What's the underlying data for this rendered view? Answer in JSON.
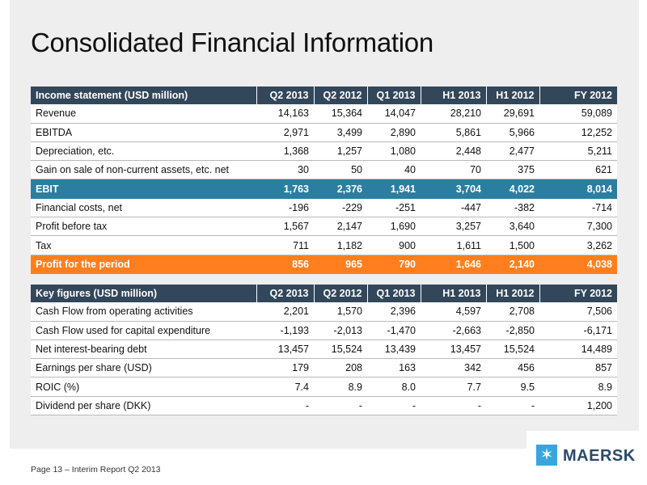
{
  "title": "Consolidated Financial Information",
  "income": {
    "header": [
      "Income statement (USD million)",
      "Q2 2013",
      "Q2 2012",
      "Q1 2013",
      "H1 2013",
      "H1 2012",
      "FY 2012"
    ],
    "rows": [
      [
        "Revenue",
        "14,163",
        "15,364",
        "14,047",
        "28,210",
        "29,691",
        "59,089"
      ],
      [
        "EBITDA",
        "2,971",
        "3,499",
        "2,890",
        "5,861",
        "5,966",
        "12,252"
      ],
      [
        "Depreciation, etc.",
        "1,368",
        "1,257",
        "1,080",
        "2,448",
        "2,477",
        "5,211"
      ],
      [
        "Gain on sale of non-current assets, etc. net",
        "30",
        "50",
        "40",
        "70",
        "375",
        "621"
      ],
      [
        "EBIT",
        "1,763",
        "2,376",
        "1,941",
        "3,704",
        "4,022",
        "8,014"
      ],
      [
        "Financial costs, net",
        "-196",
        "-229",
        "-251",
        "-447",
        "-382",
        "-714"
      ],
      [
        "Profit before tax",
        "1,567",
        "2,147",
        "1,690",
        "3,257",
        "3,640",
        "7,300"
      ],
      [
        "Tax",
        "711",
        "1,182",
        "900",
        "1,611",
        "1,500",
        "3,262"
      ],
      [
        "Profit for the period",
        "856",
        "965",
        "790",
        "1,646",
        "2,140",
        "4,038"
      ]
    ]
  },
  "keyfigures": {
    "header": [
      "Key figures (USD million)",
      "Q2 2013",
      "Q2 2012",
      "Q1 2013",
      "H1 2013",
      "H1 2012",
      "FY 2012"
    ],
    "rows": [
      [
        "Cash Flow from operating activities",
        "2,201",
        "1,570",
        "2,396",
        "4,597",
        "2,708",
        "7,506"
      ],
      [
        "Cash Flow used for capital expenditure",
        "-1,193",
        "-2,013",
        "-1,470",
        "-2,663",
        "-2,850",
        "-6,171"
      ],
      [
        "Net interest-bearing debt",
        "13,457",
        "15,524",
        "13,439",
        "13,457",
        "15,524",
        "14,489"
      ],
      [
        "Earnings per share (USD)",
        "179",
        "208",
        "163",
        "342",
        "456",
        "857"
      ],
      [
        "ROIC (%)",
        "7.4",
        "8.9",
        "8.0",
        "7.7",
        "9.5",
        "8.9"
      ],
      [
        "Dividend per share (DKK)",
        "-",
        "-",
        "-",
        "-",
        "-",
        "1,200"
      ]
    ]
  },
  "footer": "Page 13 – Interim Report Q2 2013",
  "logo": {
    "text": "MAERSK",
    "icon": "star-icon",
    "color": "#38a6dc"
  },
  "colors": {
    "header": "#33475b",
    "ebit": "#2b7ea0",
    "profit": "#ff7f1e"
  }
}
